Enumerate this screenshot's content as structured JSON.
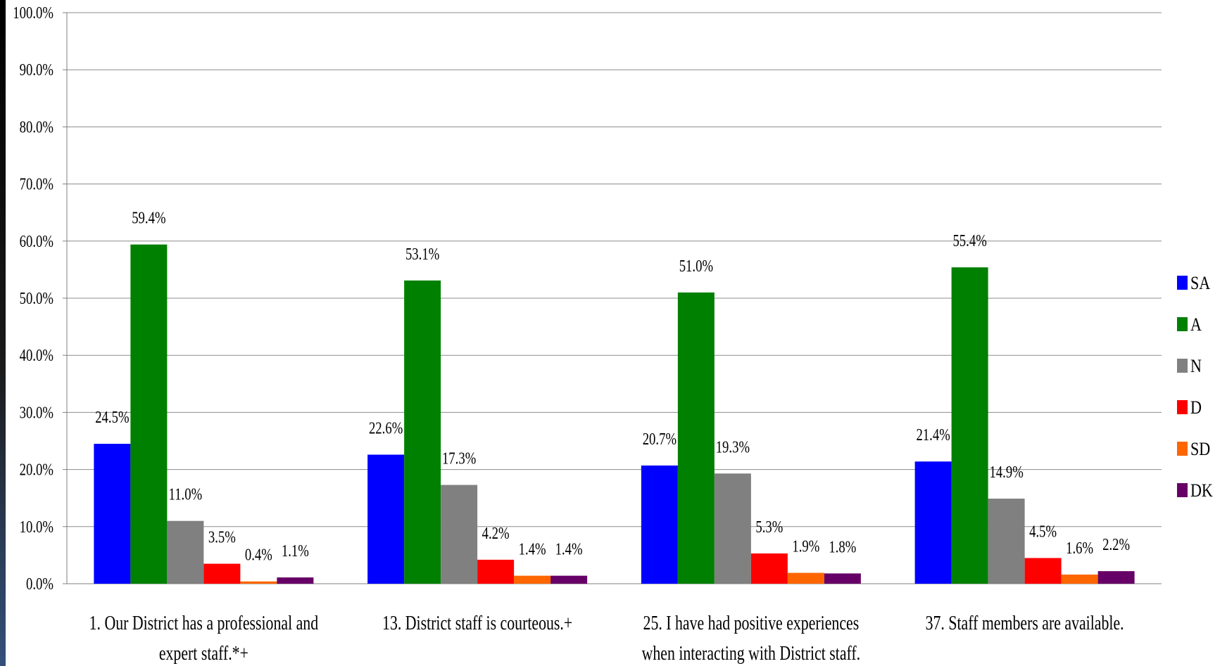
{
  "chart_data": {
    "type": "bar",
    "title": "",
    "xlabel": "",
    "ylabel": "",
    "ylim": [
      0,
      100
    ],
    "ytick_step": 10,
    "ytick_labels": [
      "0.0%",
      "10.0%",
      "20.0%",
      "30.0%",
      "40.0%",
      "50.0%",
      "60.0%",
      "70.0%",
      "80.0%",
      "90.0%",
      "100.0%"
    ],
    "grid": true,
    "legend_position": "right",
    "categories": [
      [
        "1. Our District has a professional and",
        "expert staff.*+"
      ],
      [
        "13. District staff is courteous.+"
      ],
      [
        "25. I have had positive experiences",
        "when interacting with District staff."
      ],
      [
        "37. Staff members are available."
      ]
    ],
    "series": [
      {
        "name": "SA",
        "color": "#0000ff",
        "values": [
          24.5,
          22.6,
          20.7,
          21.4
        ],
        "labels": [
          "24.5%",
          "22.6%",
          "20.7%",
          "21.4%"
        ]
      },
      {
        "name": "A",
        "color": "#008000",
        "values": [
          59.4,
          53.1,
          51.0,
          55.4
        ],
        "labels": [
          "59.4%",
          "53.1%",
          "51.0%",
          "55.4%"
        ]
      },
      {
        "name": "N",
        "color": "#808080",
        "values": [
          11.0,
          17.3,
          19.3,
          14.9
        ],
        "labels": [
          "11.0%",
          "17.3%",
          "19.3%",
          "14.9%"
        ]
      },
      {
        "name": "D",
        "color": "#ff0000",
        "values": [
          3.5,
          4.2,
          5.3,
          4.5
        ],
        "labels": [
          "3.5%",
          "4.2%",
          "5.3%",
          "4.5%"
        ]
      },
      {
        "name": "SD",
        "color": "#ff6600",
        "values": [
          0.4,
          1.4,
          1.9,
          1.6
        ],
        "labels": [
          "0.4%",
          "1.4%",
          "1.9%",
          "1.6%"
        ]
      },
      {
        "name": "DK",
        "color": "#660066",
        "values": [
          1.1,
          1.4,
          1.8,
          2.2
        ],
        "labels": [
          "1.1%",
          "1.4%",
          "1.8%",
          "2.2%"
        ]
      }
    ]
  }
}
